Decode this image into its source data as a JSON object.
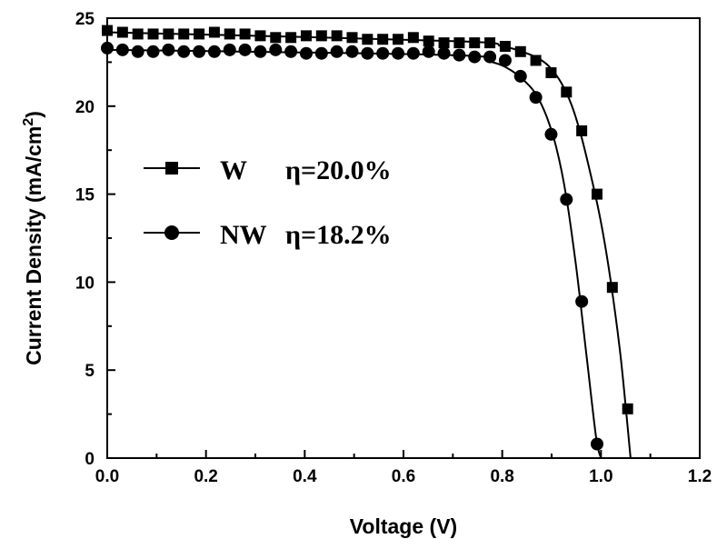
{
  "chart_data": {
    "type": "line",
    "xlabel": "Voltage (V)",
    "ylabel": "Current Density (mA/cm",
    "ylabel_sup": "2",
    "ylabel_close": ")",
    "xlim": [
      0.0,
      1.2
    ],
    "ylim": [
      0,
      25
    ],
    "x_ticks": [
      0.0,
      0.2,
      0.4,
      0.6,
      0.8,
      1.0,
      1.2
    ],
    "x_tick_labels": [
      "0.0",
      "0.2",
      "0.4",
      "0.6",
      "0.8",
      "1.0",
      "1.2"
    ],
    "y_ticks": [
      0,
      5,
      10,
      15,
      20,
      25
    ],
    "y_tick_labels": [
      "0",
      "5",
      "10",
      "15",
      "20",
      "25"
    ],
    "grid": false,
    "legend_position": "center-left",
    "series": [
      {
        "name": "W",
        "annotation": "η=20.0%",
        "marker": "square",
        "color": "#000000",
        "x": [
          0.0,
          0.031,
          0.062,
          0.093,
          0.124,
          0.155,
          0.186,
          0.217,
          0.248,
          0.279,
          0.31,
          0.341,
          0.372,
          0.403,
          0.434,
          0.465,
          0.496,
          0.527,
          0.558,
          0.589,
          0.62,
          0.651,
          0.682,
          0.713,
          0.744,
          0.775,
          0.806,
          0.837,
          0.868,
          0.899,
          0.93,
          0.961,
          0.992,
          1.023,
          1.054
        ],
        "y": [
          24.3,
          24.2,
          24.1,
          24.1,
          24.1,
          24.1,
          24.1,
          24.2,
          24.1,
          24.1,
          24.0,
          23.9,
          23.9,
          24.0,
          24.0,
          24.0,
          23.9,
          23.8,
          23.8,
          23.8,
          23.9,
          23.7,
          23.6,
          23.6,
          23.6,
          23.6,
          23.4,
          23.1,
          22.6,
          21.9,
          20.8,
          18.6,
          15.0,
          9.7,
          2.8
        ],
        "curve_x": [
          0.0,
          0.7,
          0.8,
          0.85,
          0.88,
          0.9,
          0.92,
          0.94,
          0.96,
          0.98,
          1.0,
          1.02,
          1.04,
          1.06
        ],
        "curve_y": [
          24.2,
          23.7,
          23.4,
          23.0,
          22.6,
          22.1,
          21.3,
          20.1,
          18.3,
          16.0,
          13.4,
          10.0,
          5.7,
          0.0
        ]
      },
      {
        "name": "NW",
        "annotation": "η=18.2%",
        "marker": "circle",
        "color": "#000000",
        "x": [
          0.0,
          0.031,
          0.062,
          0.093,
          0.124,
          0.155,
          0.186,
          0.217,
          0.248,
          0.279,
          0.31,
          0.341,
          0.372,
          0.403,
          0.434,
          0.465,
          0.496,
          0.527,
          0.558,
          0.589,
          0.62,
          0.651,
          0.682,
          0.713,
          0.744,
          0.775,
          0.806,
          0.837,
          0.868,
          0.899,
          0.93,
          0.961,
          0.992
        ],
        "y": [
          23.3,
          23.2,
          23.1,
          23.1,
          23.2,
          23.1,
          23.1,
          23.1,
          23.2,
          23.2,
          23.1,
          23.2,
          23.1,
          23.0,
          23.0,
          23.1,
          23.1,
          23.0,
          23.0,
          23.0,
          23.0,
          23.1,
          23.0,
          22.9,
          22.8,
          22.8,
          22.6,
          21.7,
          20.5,
          18.4,
          14.7,
          8.9,
          0.8
        ],
        "curve_x": [
          0.0,
          0.7,
          0.78,
          0.82,
          0.85,
          0.87,
          0.89,
          0.91,
          0.93,
          0.95,
          0.97,
          0.99,
          1.0
        ],
        "curve_y": [
          23.2,
          22.9,
          22.5,
          22.0,
          21.3,
          20.6,
          19.4,
          17.6,
          14.8,
          10.8,
          6.0,
          1.2,
          0.0
        ]
      }
    ]
  }
}
